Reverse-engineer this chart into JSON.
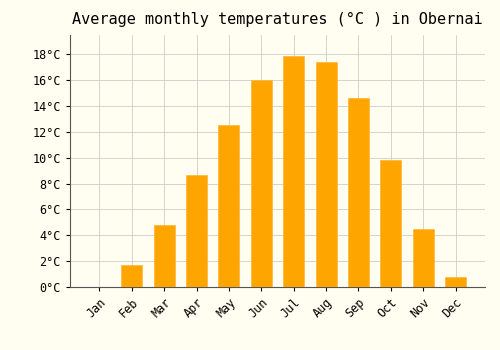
{
  "title": "Average monthly temperatures (°C ) in Obernai",
  "months": [
    "Jan",
    "Feb",
    "Mar",
    "Apr",
    "May",
    "Jun",
    "Jul",
    "Aug",
    "Sep",
    "Oct",
    "Nov",
    "Dec"
  ],
  "values": [
    0.0,
    1.7,
    4.8,
    8.7,
    12.5,
    16.0,
    17.9,
    17.4,
    14.6,
    9.8,
    4.5,
    0.8
  ],
  "bar_color": "#FFA500",
  "bar_edge_color": "#FFB733",
  "background_color": "#FFFEF0",
  "grid_color": "#CCCCCC",
  "ylim": [
    0,
    19.5
  ],
  "yticks": [
    0,
    2,
    4,
    6,
    8,
    10,
    12,
    14,
    16,
    18
  ],
  "title_fontsize": 11,
  "tick_fontsize": 8.5,
  "font_family": "monospace"
}
